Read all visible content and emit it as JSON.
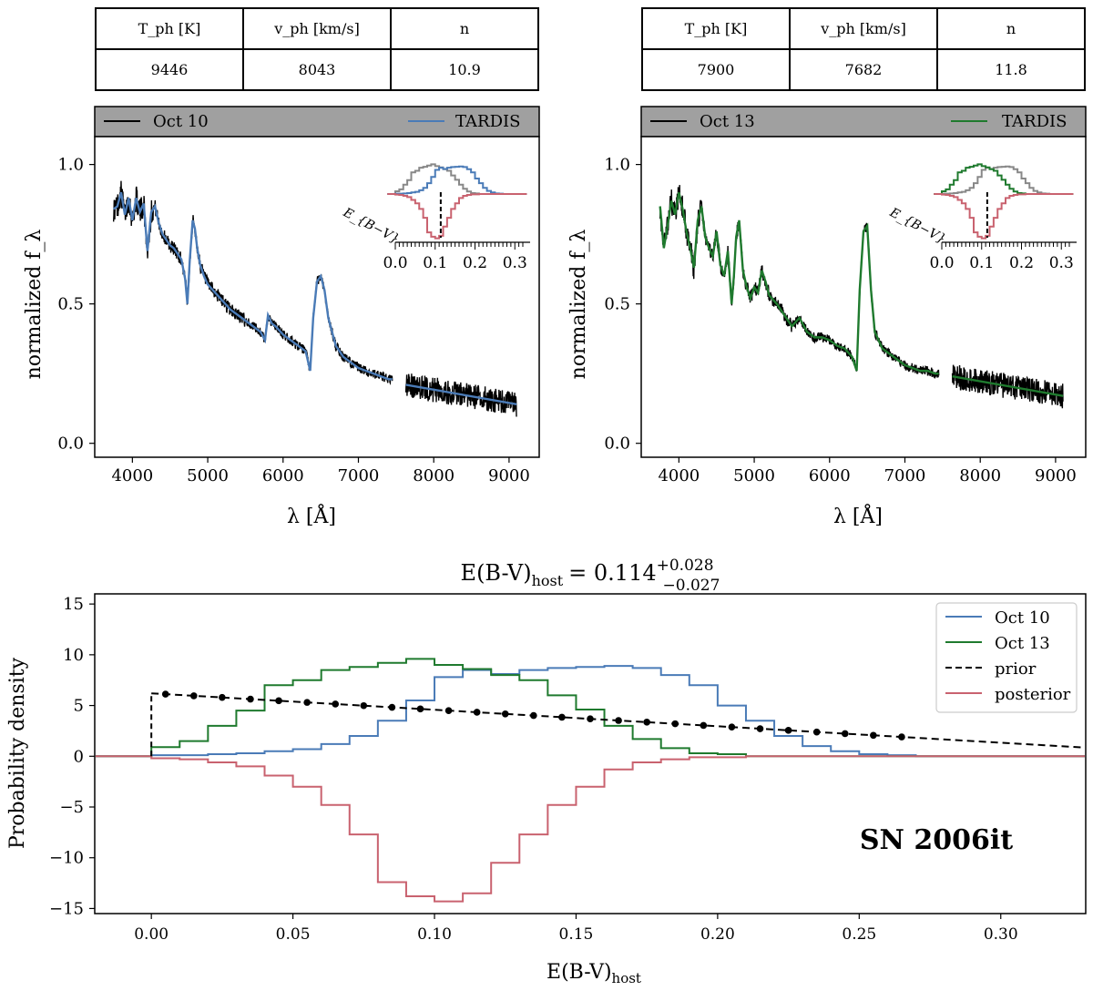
{
  "tables": [
    {
      "headers": [
        "T_ph [K]",
        "v_ph [km/s]",
        "n"
      ],
      "values": [
        "9446",
        "8043",
        "10.9"
      ]
    },
    {
      "headers": [
        "T_ph [K]",
        "v_ph [km/s]",
        "n"
      ],
      "values": [
        "7900",
        "7682",
        "11.8"
      ]
    }
  ],
  "chart_data": [
    {
      "type": "line",
      "title": "",
      "legend": [
        {
          "name": "Oct 10",
          "color": "#000000"
        },
        {
          "name": "TARDIS",
          "color": "#4a7bb7"
        }
      ],
      "xlabel": "λ [Å]",
      "ylabel": "normalized f_λ",
      "xlim": [
        3500,
        9400
      ],
      "ylim": [
        -0.05,
        1.1
      ],
      "xticks": [
        "4000",
        "5000",
        "6000",
        "7000",
        "8000",
        "9000"
      ],
      "yticks": [
        "0.0",
        "0.5",
        "1.0"
      ],
      "observed_gap": [
        7450,
        7630
      ],
      "model": {
        "x": [
          3750,
          3800,
          3850,
          3900,
          3950,
          4000,
          4050,
          4100,
          4150,
          4200,
          4250,
          4300,
          4350,
          4400,
          4450,
          4500,
          4550,
          4600,
          4650,
          4700,
          4730,
          4760,
          4800,
          4830,
          4860,
          4900,
          4950,
          5000,
          5100,
          5200,
          5300,
          5400,
          5500,
          5600,
          5700,
          5760,
          5800,
          5850,
          5900,
          6000,
          6100,
          6200,
          6300,
          6360,
          6400,
          6450,
          6500,
          6550,
          6600,
          6700,
          6800,
          6900,
          7000,
          7100,
          7200,
          7300,
          7400,
          7450
        ],
        "y": [
          0.84,
          0.85,
          0.9,
          0.82,
          0.88,
          0.8,
          0.88,
          0.83,
          0.86,
          0.69,
          0.83,
          0.85,
          0.79,
          0.75,
          0.73,
          0.71,
          0.7,
          0.68,
          0.66,
          0.59,
          0.5,
          0.65,
          0.8,
          0.77,
          0.7,
          0.64,
          0.6,
          0.57,
          0.54,
          0.51,
          0.48,
          0.46,
          0.44,
          0.42,
          0.4,
          0.37,
          0.46,
          0.43,
          0.42,
          0.39,
          0.37,
          0.35,
          0.33,
          0.26,
          0.45,
          0.58,
          0.6,
          0.55,
          0.45,
          0.35,
          0.31,
          0.29,
          0.27,
          0.26,
          0.25,
          0.24,
          0.23,
          0.23
        ]
      },
      "model_red": {
        "x": [
          7630,
          9100
        ],
        "y": [
          0.21,
          0.14
        ]
      },
      "inset": {
        "xlabel": "E_{B−V}",
        "xticks": [
          "0.0",
          "0.1",
          "0.2",
          "0.3"
        ],
        "marker": 0.114
      }
    },
    {
      "type": "line",
      "title": "",
      "legend": [
        {
          "name": "Oct 13",
          "color": "#000000"
        },
        {
          "name": "TARDIS",
          "color": "#1f7a2e"
        }
      ],
      "xlabel": "λ [Å]",
      "ylabel": "normalized f_λ",
      "xlim": [
        3500,
        9400
      ],
      "ylim": [
        -0.05,
        1.1
      ],
      "xticks": [
        "4000",
        "5000",
        "6000",
        "7000",
        "8000",
        "9000"
      ],
      "yticks": [
        "0.0",
        "0.5",
        "1.0"
      ],
      "observed_gap": [
        7450,
        7630
      ],
      "model": {
        "x": [
          3750,
          3800,
          3850,
          3900,
          3950,
          4000,
          4050,
          4100,
          4150,
          4200,
          4250,
          4300,
          4350,
          4400,
          4450,
          4500,
          4550,
          4600,
          4650,
          4700,
          4730,
          4760,
          4800,
          4850,
          4900,
          4950,
          5000,
          5050,
          5100,
          5150,
          5200,
          5300,
          5400,
          5500,
          5600,
          5700,
          5800,
          5900,
          6000,
          6100,
          6200,
          6300,
          6360,
          6400,
          6450,
          6500,
          6550,
          6600,
          6700,
          6800,
          6900,
          7000,
          7100,
          7200,
          7300,
          7400,
          7450
        ],
        "y": [
          0.85,
          0.7,
          0.78,
          0.87,
          0.82,
          0.9,
          0.84,
          0.76,
          0.7,
          0.63,
          0.8,
          0.85,
          0.74,
          0.7,
          0.67,
          0.76,
          0.64,
          0.6,
          0.69,
          0.5,
          0.6,
          0.74,
          0.8,
          0.62,
          0.56,
          0.52,
          0.56,
          0.54,
          0.62,
          0.58,
          0.53,
          0.5,
          0.46,
          0.42,
          0.45,
          0.4,
          0.38,
          0.38,
          0.37,
          0.35,
          0.34,
          0.31,
          0.26,
          0.55,
          0.76,
          0.78,
          0.55,
          0.4,
          0.34,
          0.32,
          0.3,
          0.28,
          0.27,
          0.26,
          0.26,
          0.25,
          0.25
        ]
      },
      "model_red": {
        "x": [
          7630,
          9100
        ],
        "y": [
          0.24,
          0.17
        ]
      },
      "inset": {
        "xlabel": "E_{B−V}",
        "xticks": [
          "0.0",
          "0.1",
          "0.2",
          "0.3"
        ],
        "marker": 0.114
      }
    },
    {
      "type": "line",
      "title": "E(B-V)host = 0.114 +0.028 −0.027",
      "title_parts": {
        "main": "E(B-V)",
        "sub": "host",
        "eq": "= 0.114",
        "sup": "+0.028",
        "low": "−0.027"
      },
      "xlabel": "E(B-V)host",
      "xlabel_parts": {
        "main": "E(B-V)",
        "sub": "host"
      },
      "ylabel": "Probability density",
      "xlim": [
        -0.02,
        0.33
      ],
      "ylim": [
        -15.5,
        16
      ],
      "xticks": [
        "0.00",
        "0.05",
        "0.10",
        "0.15",
        "0.20",
        "0.25",
        "0.30"
      ],
      "yticks": [
        "−15",
        "−10",
        "−5",
        "0",
        "5",
        "10",
        "15"
      ],
      "annotation": "SN 2006it",
      "legend": [
        "Oct 10",
        "Oct 13",
        "prior",
        "posterior"
      ],
      "bin_edges": [
        0.0,
        0.01,
        0.02,
        0.03,
        0.04,
        0.05,
        0.06,
        0.07,
        0.08,
        0.09,
        0.1,
        0.11,
        0.12,
        0.13,
        0.14,
        0.15,
        0.16,
        0.17,
        0.18,
        0.19,
        0.2,
        0.21,
        0.22,
        0.23,
        0.24,
        0.25,
        0.26,
        0.27
      ],
      "series": [
        {
          "name": "Oct 10",
          "color": "#4a7bb7",
          "values": [
            0.1,
            0.1,
            0.2,
            0.3,
            0.5,
            0.7,
            1.2,
            2.0,
            3.5,
            5.5,
            7.8,
            8.5,
            8.1,
            8.5,
            8.7,
            8.8,
            8.9,
            8.7,
            8.0,
            7.0,
            5.0,
            3.5,
            2.0,
            1.0,
            0.5,
            0.2,
            0.1
          ]
        },
        {
          "name": "Oct 13",
          "color": "#1f7a2e",
          "values": [
            0.9,
            1.5,
            3.0,
            4.5,
            7.0,
            7.5,
            8.5,
            8.8,
            9.2,
            9.6,
            9.0,
            8.6,
            8.0,
            7.5,
            6.0,
            4.6,
            3.0,
            1.7,
            0.8,
            0.3,
            0.2,
            0,
            0,
            0,
            0,
            0,
            0
          ]
        },
        {
          "name": "posterior",
          "color": "#c9626f",
          "values": [
            -0.2,
            -0.3,
            -0.6,
            -1.0,
            -1.9,
            -3.0,
            -4.8,
            -7.7,
            -12.4,
            -13.8,
            -14.3,
            -13.5,
            -10.5,
            -7.7,
            -4.8,
            -3.0,
            -1.3,
            -0.6,
            -0.3,
            -0.1,
            -0.1,
            0,
            0,
            0,
            0,
            0,
            0
          ]
        }
      ],
      "prior": {
        "x": [
          0.0,
          0.33
        ],
        "y": [
          6.2,
          0.85
        ]
      },
      "prior_points_x": [
        0.005,
        0.015,
        0.025,
        0.035,
        0.045,
        0.055,
        0.065,
        0.075,
        0.085,
        0.095,
        0.105,
        0.115,
        0.125,
        0.135,
        0.145,
        0.155,
        0.165,
        0.175,
        0.185,
        0.195,
        0.205,
        0.215,
        0.225,
        0.235,
        0.245,
        0.255,
        0.265
      ]
    }
  ]
}
